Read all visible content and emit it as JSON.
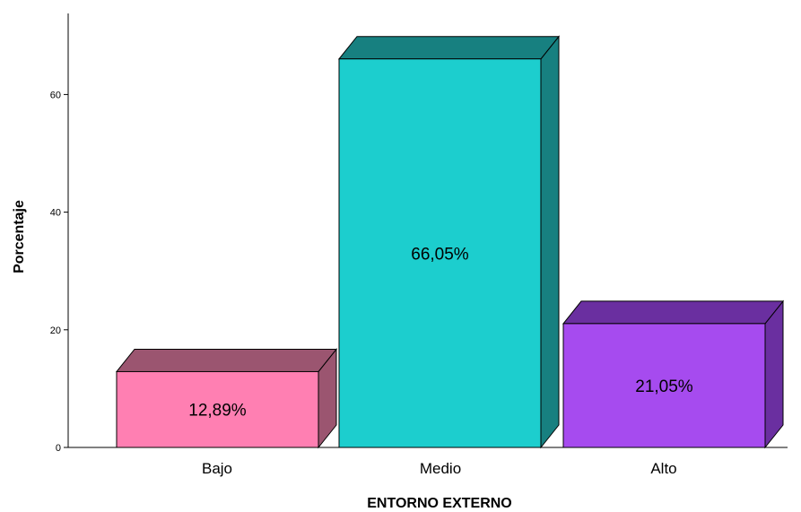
{
  "chart_data": {
    "type": "bar",
    "style": "3d",
    "categories": [
      "Bajo",
      "Medio",
      "Alto"
    ],
    "values": [
      12.89,
      66.05,
      21.05
    ],
    "data_labels": [
      "12,89%",
      "66,05%",
      "21,05%"
    ],
    "xlabel": "ENTORNO EXTERNO",
    "ylabel": "Porcentaje",
    "yticks": [
      0,
      20,
      40,
      60
    ],
    "ylim": [
      0,
      73.5
    ],
    "grid": false,
    "legend": "none",
    "colors": [
      {
        "front": "#ff7fb2",
        "top": "#9b5570",
        "side": "#9b5570"
      },
      {
        "front": "#1ccece",
        "top": "#178080",
        "side": "#178080"
      },
      {
        "front": "#a64bef",
        "top": "#6a2fa0",
        "side": "#6a2fa0"
      }
    ]
  }
}
